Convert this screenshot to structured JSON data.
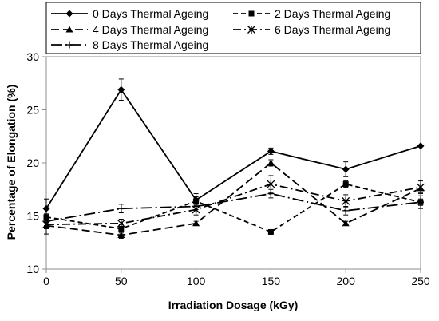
{
  "chart_data": {
    "type": "line",
    "xlabel": "Irradiation Dosage (kGy)",
    "ylabel": "Percentage of Elongation (%)",
    "x": [
      0,
      50,
      100,
      150,
      200,
      250
    ],
    "xlim": [
      0,
      250
    ],
    "ylim": [
      10,
      30
    ],
    "yticks": [
      10,
      15,
      20,
      25,
      30
    ],
    "xticks": [
      0,
      50,
      100,
      150,
      200,
      250
    ],
    "grid": false,
    "legend_position": "top",
    "series": [
      {
        "name": "0 Days Thermal Ageing",
        "values": [
          15.7,
          26.9,
          16.5,
          21.1,
          19.4,
          21.6
        ],
        "errors": [
          0.9,
          1.0,
          0.6,
          0.3,
          0.7,
          0.0
        ],
        "marker": "diamond",
        "dash": "solid",
        "color": "#000000"
      },
      {
        "name": "2 Days Thermal Ageing",
        "values": [
          14.9,
          13.8,
          16.4,
          13.5,
          18.0,
          16.3
        ],
        "errors": [
          0.3,
          0.4,
          0.4,
          0.2,
          0.3,
          0.6
        ],
        "marker": "square",
        "dash": "dash",
        "color": "#000000"
      },
      {
        "name": "4 Days Thermal Ageing",
        "values": [
          14.1,
          13.2,
          14.3,
          20.0,
          14.3,
          17.6
        ],
        "errors": [
          0.3,
          0.3,
          0.2,
          0.3,
          0.2,
          0.4
        ],
        "marker": "triangle",
        "dash": "longdash",
        "color": "#000000"
      },
      {
        "name": "6 Days Thermal Ageing",
        "values": [
          14.2,
          14.3,
          15.6,
          18.0,
          16.4,
          17.7
        ],
        "errors": [
          0.9,
          0.4,
          0.5,
          0.8,
          0.6,
          0.6
        ],
        "marker": "star",
        "dash": "dashdot",
        "color": "#000000"
      },
      {
        "name": "8 Days Thermal Ageing",
        "values": [
          14.5,
          15.7,
          15.9,
          17.1,
          15.5,
          16.3
        ],
        "errors": [
          0.4,
          0.4,
          0.3,
          0.4,
          0.4,
          0.3
        ],
        "marker": "plus",
        "dash": "longdashdot",
        "color": "#000000"
      }
    ]
  }
}
